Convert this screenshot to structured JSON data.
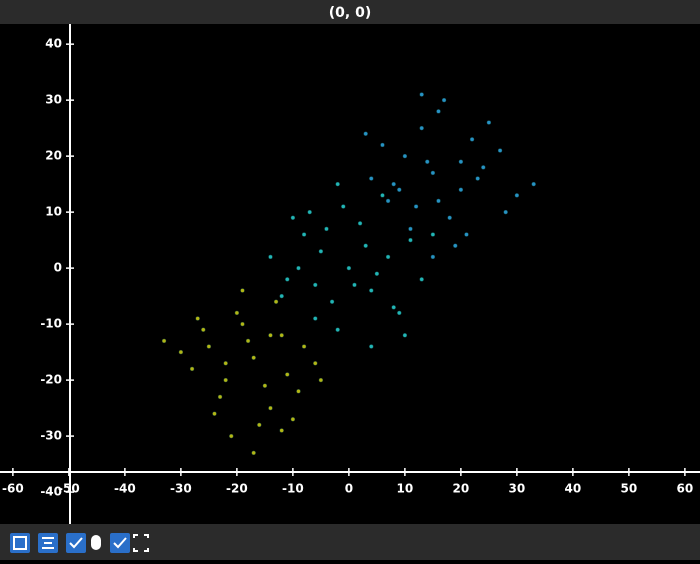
{
  "chart_data": {
    "type": "scatter",
    "title": "(0, 0)",
    "xlim": [
      -62.3,
      62.7
    ],
    "ylim": [
      -45.7,
      43.6
    ],
    "xticks": [
      -60,
      -50,
      -40,
      -30,
      -20,
      -10,
      0,
      10,
      20,
      30,
      40,
      50,
      60
    ],
    "yticks": [
      -40,
      -30,
      -20,
      -10,
      0,
      10,
      20,
      30,
      40
    ],
    "series": [
      {
        "color": "#b3b614",
        "x": [
          -17,
          -22,
          -12,
          -25,
          -9,
          -19,
          -14,
          -28,
          -6,
          -20,
          -16,
          -23,
          -11,
          -18,
          -30,
          -13,
          -21,
          -8,
          -15,
          -26,
          -24,
          -10,
          -19,
          -17,
          -27,
          -5,
          -14,
          -22,
          -12,
          -33
        ],
        "y": [
          -16,
          -20,
          -12,
          -14,
          -22,
          -10,
          -25,
          -18,
          -17,
          -8,
          -28,
          -23,
          -19,
          -13,
          -15,
          -6,
          -30,
          -14,
          -21,
          -11,
          -26,
          -27,
          -4,
          -33,
          -9,
          -20,
          -12,
          -17,
          -29,
          -13
        ]
      },
      {
        "color": "#22b5b5",
        "x": [
          0,
          -5,
          4,
          -8,
          7,
          -3,
          2,
          -11,
          9,
          -1,
          5,
          -6,
          3,
          -9,
          11,
          -2,
          6,
          -12,
          1,
          8,
          -4,
          13,
          -7,
          -14,
          10,
          -2,
          4,
          -10,
          15,
          -6
        ],
        "y": [
          0,
          3,
          -4,
          6,
          2,
          -6,
          8,
          -2,
          -8,
          11,
          -1,
          -9,
          4,
          0,
          5,
          -11,
          13,
          -5,
          -3,
          -7,
          7,
          -2,
          10,
          2,
          -12,
          15,
          -14,
          9,
          6,
          -3
        ]
      },
      {
        "color": "#2792c4",
        "x": [
          15,
          10,
          20,
          7,
          24,
          13,
          18,
          4,
          27,
          11,
          16,
          22,
          8,
          19,
          30,
          14,
          12,
          25,
          6,
          21,
          17,
          9,
          28,
          15,
          23,
          3,
          13,
          20,
          33,
          16
        ],
        "y": [
          17,
          20,
          14,
          12,
          18,
          25,
          9,
          16,
          21,
          7,
          28,
          23,
          15,
          4,
          13,
          19,
          11,
          26,
          22,
          6,
          30,
          14,
          10,
          2,
          16,
          24,
          31,
          19,
          15,
          12
        ]
      }
    ]
  }
}
